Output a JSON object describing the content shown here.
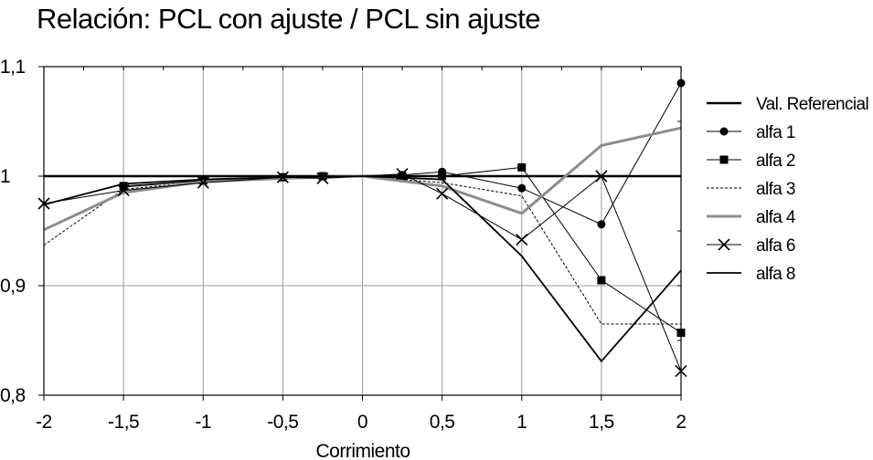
{
  "chart_data": {
    "type": "line",
    "title": "Relación: PCL con ajuste / PCL sin ajuste",
    "xlabel": "Corrimiento",
    "ylabel": "",
    "xlim": [
      -2,
      2
    ],
    "ylim": [
      0.8,
      1.1
    ],
    "grid": true,
    "legend_position": "right",
    "x_ticks": [
      {
        "value": -2,
        "label": "-2"
      },
      {
        "value": -1.5,
        "label": "-1,5"
      },
      {
        "value": -1,
        "label": "-1"
      },
      {
        "value": -0.5,
        "label": "-0,5"
      },
      {
        "value": 0,
        "label": "0"
      },
      {
        "value": 0.5,
        "label": "0,5"
      },
      {
        "value": 1,
        "label": "1"
      },
      {
        "value": 1.5,
        "label": "1,5"
      },
      {
        "value": 2,
        "label": "2"
      }
    ],
    "y_ticks": [
      {
        "value": 1.1,
        "label": "1,1"
      },
      {
        "value": 1.0,
        "label": "1"
      },
      {
        "value": 0.9,
        "label": "0,9"
      },
      {
        "value": 0.8,
        "label": "0,8"
      }
    ],
    "series": [
      {
        "name": "Val. Referencial",
        "color": "#000000",
        "style": "thick",
        "marker": "none",
        "points": [
          [
            -2,
            1.0
          ],
          [
            2,
            1.0
          ]
        ]
      },
      {
        "name": "alfa 1",
        "color": "#000000",
        "style": "thin",
        "marker": "circle",
        "points": [
          [
            -1.5,
            0.99
          ],
          [
            -1,
            0.996
          ],
          [
            -0.5,
            0.999
          ],
          [
            -0.25,
            1.0
          ],
          [
            0.25,
            1.001
          ],
          [
            0.5,
            1.004
          ],
          [
            1,
            0.989
          ],
          [
            1.5,
            0.956
          ],
          [
            2,
            1.085
          ]
        ]
      },
      {
        "name": "alfa 2",
        "color": "#000000",
        "style": "thin",
        "marker": "square",
        "points": [
          [
            -1.5,
            0.991
          ],
          [
            -1,
            0.996
          ],
          [
            -0.5,
            0.999
          ],
          [
            -0.25,
            1.0
          ],
          [
            0.25,
            1.0
          ],
          [
            0.5,
            1.0
          ],
          [
            1,
            1.008
          ],
          [
            1.5,
            0.905
          ],
          [
            2,
            0.857
          ]
        ]
      },
      {
        "name": "alfa 3",
        "color": "#000000",
        "style": "dashed",
        "marker": "none",
        "points": [
          [
            -2,
            0.937
          ],
          [
            -1.5,
            0.988
          ],
          [
            -1,
            0.995
          ],
          [
            -0.5,
            0.998
          ],
          [
            0,
            1.0
          ],
          [
            0.5,
            0.994
          ],
          [
            1,
            0.982
          ],
          [
            1.5,
            0.865
          ],
          [
            2,
            0.865
          ]
        ]
      },
      {
        "name": "alfa 4",
        "color": "#8c8c8c",
        "style": "gray",
        "marker": "none",
        "points": [
          [
            -2,
            0.951
          ],
          [
            -1.5,
            0.985
          ],
          [
            -1,
            0.995
          ],
          [
            -0.5,
            0.998
          ],
          [
            0,
            1.0
          ],
          [
            0.5,
            0.991
          ],
          [
            1,
            0.966
          ],
          [
            1.5,
            1.028
          ],
          [
            2,
            1.044
          ]
        ]
      },
      {
        "name": "alfa 6",
        "color": "#000000",
        "style": "thin",
        "marker": "x",
        "points": [
          [
            -2,
            0.975
          ],
          [
            -1.5,
            0.987
          ],
          [
            -1,
            0.994
          ],
          [
            -0.5,
            0.999
          ],
          [
            -0.25,
            0.998
          ],
          [
            0.25,
            1.002
          ],
          [
            0.5,
            0.984
          ],
          [
            1,
            0.942
          ],
          [
            1.5,
            1.0
          ],
          [
            2,
            0.822
          ]
        ]
      },
      {
        "name": "alfa 8",
        "color": "#000000",
        "style": "medium",
        "marker": "none",
        "points": [
          [
            -2,
            0.974
          ],
          [
            -1.5,
            0.993
          ],
          [
            -1,
            0.997
          ],
          [
            -0.5,
            0.999
          ],
          [
            0,
            1.0
          ],
          [
            0.5,
            0.997
          ],
          [
            1,
            0.927
          ],
          [
            1.5,
            0.831
          ],
          [
            2,
            0.914
          ]
        ]
      }
    ]
  }
}
